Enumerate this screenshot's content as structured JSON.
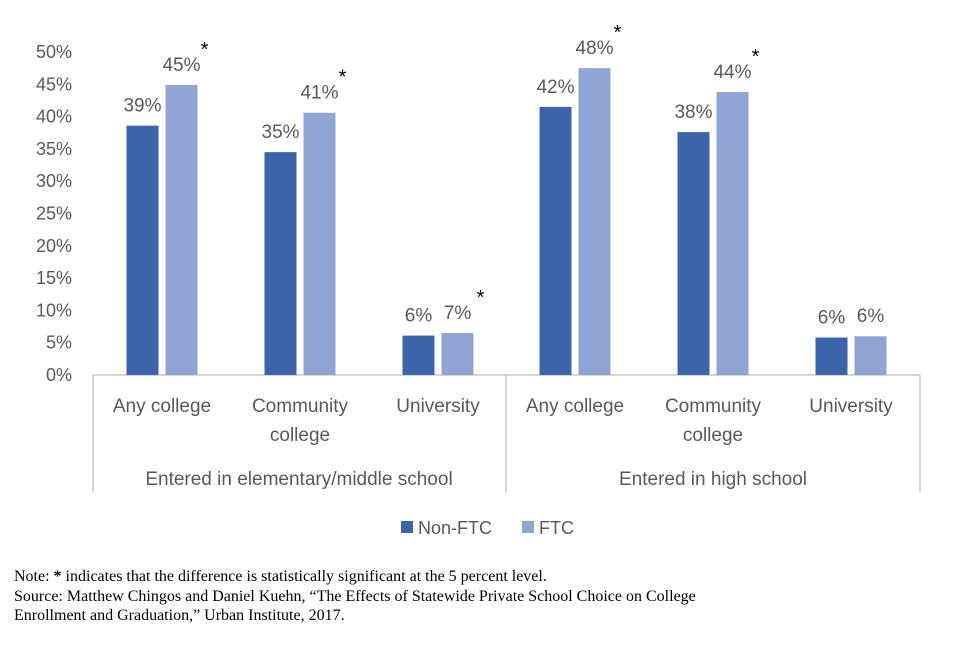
{
  "chart_data": {
    "type": "bar",
    "title": "",
    "xlabel": "",
    "ylabel": "",
    "ylim": [
      0,
      0.5
    ],
    "ytick_step": 0.05,
    "y_ticks": [
      "0%",
      "5%",
      "10%",
      "15%",
      "20%",
      "25%",
      "30%",
      "35%",
      "40%",
      "45%",
      "50%"
    ],
    "grid": false,
    "legend_position": "bottom-center",
    "groups": [
      {
        "name": "Entered in elementary/middle school",
        "categories": [
          "Any college",
          "Community college",
          "University"
        ]
      },
      {
        "name": "Entered in high school",
        "categories": [
          "Any college",
          "Community college",
          "University"
        ]
      }
    ],
    "category_lines": {
      "Any college": [
        "Any college"
      ],
      "Community college": [
        "Community",
        "college"
      ],
      "University": [
        "University"
      ]
    },
    "series": [
      {
        "name": "Non-FTC",
        "color": "#3c64aa",
        "values": [
          0.386,
          0.345,
          0.061,
          0.415,
          0.376,
          0.058
        ],
        "labels": [
          "39%",
          "35%",
          "6%",
          "42%",
          "38%",
          "6%"
        ],
        "significant": [
          false,
          false,
          false,
          false,
          false,
          false
        ]
      },
      {
        "name": "FTC",
        "color": "#91a5d4",
        "values": [
          0.449,
          0.406,
          0.065,
          0.475,
          0.438,
          0.06
        ],
        "labels": [
          "45%",
          "41%",
          "7%",
          "48%",
          "44%",
          "6%"
        ],
        "significant": [
          true,
          true,
          true,
          true,
          true,
          false
        ]
      }
    ],
    "significance_marker": "*"
  },
  "note": {
    "line1_prefix": "Note: ",
    "line1_marker": "*",
    "line1_rest": " indicates that the difference is statistically significant at the 5 percent level.",
    "line2": "Source: Matthew Chingos and Daniel Kuehn, “The Effects of Statewide Private School Choice on College",
    "line3": "Enrollment and Graduation,” Urban Institute, 2017."
  }
}
